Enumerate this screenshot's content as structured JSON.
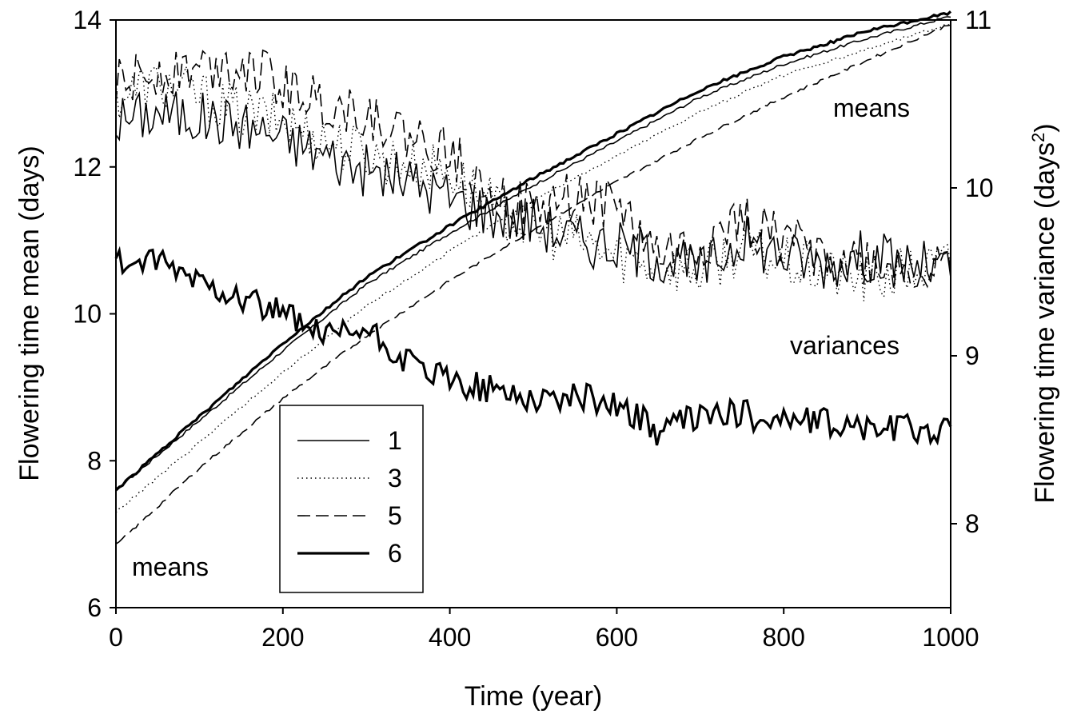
{
  "chart_data": {
    "type": "line",
    "title": "",
    "xlabel": "Time (year)",
    "ylabel": "Flowering time mean (days)",
    "y2label_base": "Flowering time variance (days",
    "y2label_sup": "2",
    "y2label_end": ")",
    "xlim": [
      0,
      1000
    ],
    "ylim": [
      6,
      14
    ],
    "y2lim": [
      7.5,
      11
    ],
    "xticks": [
      "0",
      "200",
      "400",
      "600",
      "800",
      "1000"
    ],
    "yticks": [
      "6",
      "8",
      "10",
      "12",
      "14"
    ],
    "y2ticks": [
      "8",
      "9",
      "10",
      "11"
    ],
    "grid": false,
    "legend_position": "center-left",
    "annotations": {
      "means_top": "means",
      "variances": "variances",
      "means_bottom": "means"
    },
    "series": [
      {
        "name": "1",
        "style": "solid-thin",
        "means_x": [
          0,
          100,
          200,
          300,
          400,
          500,
          600,
          700,
          800,
          900,
          1000
        ],
        "means_y": [
          7.6,
          8.55,
          9.5,
          10.4,
          11.1,
          11.75,
          12.35,
          12.95,
          13.4,
          13.75,
          14.05
        ],
        "variance_x": [
          0,
          50,
          100,
          150,
          200,
          250,
          300,
          350,
          400,
          450,
          500,
          550,
          600,
          650,
          700,
          750,
          800,
          850,
          900,
          950,
          1000
        ],
        "variance_y": [
          10.4,
          10.45,
          10.42,
          10.38,
          10.3,
          10.2,
          10.1,
          10.05,
          9.95,
          9.85,
          9.8,
          9.7,
          9.65,
          9.6,
          9.5,
          9.7,
          9.6,
          9.55,
          9.6,
          9.55,
          9.5
        ]
      },
      {
        "name": "3",
        "style": "dotted",
        "means_x": [
          0,
          100,
          200,
          300,
          400,
          500,
          600,
          700,
          800,
          900,
          1000
        ],
        "means_y": [
          7.3,
          8.25,
          9.2,
          10.1,
          10.85,
          11.55,
          12.15,
          12.75,
          13.25,
          13.6,
          13.95
        ],
        "variance_x": [
          0,
          50,
          100,
          150,
          200,
          250,
          300,
          350,
          400,
          450,
          500,
          550,
          600,
          650,
          700,
          750,
          800,
          850,
          900,
          950,
          1000
        ],
        "variance_y": [
          10.55,
          10.62,
          10.55,
          10.45,
          10.4,
          10.3,
          10.2,
          10.15,
          10.1,
          9.9,
          9.75,
          9.7,
          9.6,
          9.55,
          9.5,
          9.65,
          9.55,
          9.5,
          9.45,
          9.5,
          9.55
        ]
      },
      {
        "name": "5",
        "style": "dashed",
        "means_x": [
          0,
          100,
          200,
          300,
          400,
          500,
          600,
          700,
          800,
          900,
          1000
        ],
        "means_y": [
          6.85,
          7.9,
          8.85,
          9.7,
          10.45,
          11.15,
          11.8,
          12.4,
          12.95,
          13.45,
          13.95
        ],
        "variance_x": [
          0,
          50,
          100,
          150,
          200,
          250,
          300,
          350,
          400,
          450,
          500,
          550,
          600,
          650,
          700,
          750,
          800,
          850,
          900,
          950,
          1000
        ],
        "variance_y": [
          10.6,
          10.7,
          10.72,
          10.75,
          10.6,
          10.5,
          10.45,
          10.3,
          10.2,
          10.0,
          9.85,
          9.95,
          9.9,
          9.6,
          9.65,
          9.8,
          9.7,
          9.6,
          9.55,
          9.5,
          9.5
        ]
      },
      {
        "name": "6",
        "style": "solid-thick",
        "means_x": [
          0,
          100,
          200,
          300,
          400,
          500,
          600,
          700,
          800,
          900,
          1000
        ],
        "means_y": [
          7.6,
          8.6,
          9.6,
          10.5,
          11.2,
          11.85,
          12.45,
          13.05,
          13.5,
          13.85,
          14.1
        ],
        "variance_x": [
          0,
          50,
          100,
          150,
          200,
          250,
          300,
          350,
          400,
          450,
          500,
          550,
          600,
          650,
          700,
          750,
          800,
          850,
          900,
          950,
          1000
        ],
        "variance_y": [
          9.55,
          9.55,
          9.45,
          9.35,
          9.25,
          9.1,
          9.15,
          8.95,
          8.85,
          8.8,
          8.75,
          8.75,
          8.72,
          8.55,
          8.65,
          8.65,
          8.62,
          8.6,
          8.57,
          8.57,
          8.55
        ]
      }
    ]
  }
}
